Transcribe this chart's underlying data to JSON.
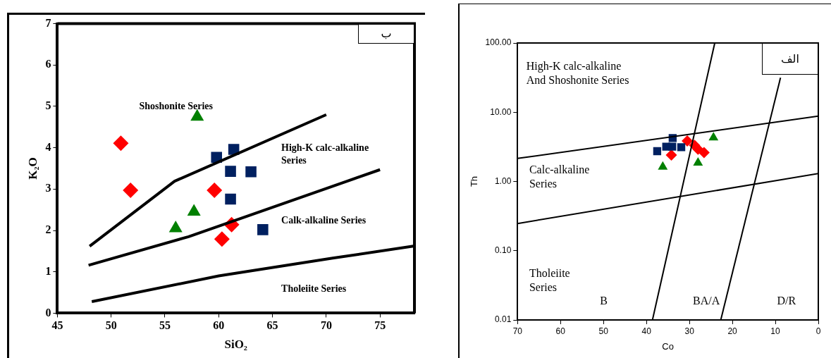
{
  "chart_data": [
    {
      "type": "scatter",
      "title": "ب",
      "xlabel": "SiO₂",
      "ylabel": "K₂O",
      "xlim": [
        45,
        78.2
      ],
      "ylim": [
        0,
        7
      ],
      "xticks": [
        45,
        50,
        55,
        60,
        65,
        70,
        75
      ],
      "yticks": [
        0,
        1,
        2,
        3,
        4,
        5,
        6,
        7
      ],
      "grid": false,
      "legend": false,
      "series": [
        {
          "type": "line",
          "color": "#000000",
          "marker": "none",
          "x": [
            48.0,
            55.9,
            70.0
          ],
          "values": [
            1.62,
            3.19,
            4.8
          ]
        },
        {
          "type": "line",
          "color": "#000000",
          "marker": "none",
          "x": [
            47.9,
            57.2,
            75.0
          ],
          "values": [
            1.16,
            1.85,
            3.47
          ]
        },
        {
          "type": "line",
          "color": "#000000",
          "marker": "none",
          "x": [
            48.2,
            60.0,
            70.6,
            78.1
          ],
          "values": [
            0.28,
            0.9,
            1.33,
            1.62
          ]
        },
        {
          "color": "#ff0000",
          "marker": "diamond",
          "x": [
            50.9,
            51.8,
            59.6,
            61.2,
            60.3
          ],
          "values": [
            4.11,
            2.97,
            2.97,
            2.14,
            1.79
          ]
        },
        {
          "color": "#002060",
          "marker": "square",
          "x": [
            59.8,
            61.4,
            61.1,
            63.0,
            61.1,
            64.1
          ],
          "values": [
            3.77,
            3.96,
            3.43,
            3.42,
            2.76,
            2.02
          ]
        },
        {
          "color": "#008000",
          "marker": "triangle",
          "x": [
            58.0,
            57.7,
            56.0
          ],
          "values": [
            4.75,
            2.45,
            2.05
          ]
        }
      ],
      "annotations": [
        "Shoshonite Series",
        "High-K calc-alkaline\nSeries",
        "Calk-alkaline Series",
        "Tholeiite Series"
      ]
    },
    {
      "type": "scatter",
      "title": "الف",
      "xlabel": "Co",
      "ylabel": "Th",
      "log": "y",
      "xlim": [
        70,
        0
      ],
      "ylim": [
        0.01,
        100
      ],
      "xticks": [
        70,
        60,
        50,
        40,
        30,
        20,
        10,
        0
      ],
      "yticks": [
        {
          "value": 0.01,
          "label": "0.01"
        },
        {
          "value": 0.1,
          "label": "0.10"
        },
        {
          "value": 1,
          "label": "1.00"
        },
        {
          "value": 10,
          "label": "10.00"
        },
        {
          "value": 100,
          "label": "100.00"
        }
      ],
      "grid": false,
      "legend": false,
      "series": [
        {
          "type": "line",
          "color": "#000000",
          "marker": "none",
          "x": [
            70,
            0
          ],
          "values": [
            2.15,
            8.77
          ]
        },
        {
          "type": "line",
          "color": "#000000",
          "marker": "none",
          "x": [
            70,
            0
          ],
          "values": [
            0.247,
            1.3
          ]
        },
        {
          "type": "line",
          "color": "#000000",
          "marker": "none",
          "x": [
            38.6,
            24.1
          ],
          "values": [
            0.01,
            100
          ]
        },
        {
          "type": "line",
          "color": "#000000",
          "marker": "none",
          "x": [
            22.7,
            8.8
          ],
          "values": [
            0.01,
            31.6
          ]
        },
        {
          "color": "#002060",
          "marker": "square",
          "x": [
            37.5,
            35.4,
            33.9,
            34.0,
            31.9
          ],
          "values": [
            2.74,
            3.18,
            4.23,
            3.18,
            3.12
          ]
        },
        {
          "color": "#ff0000",
          "marker": "diamond",
          "x": [
            34.2,
            30.5,
            28.8,
            28.0,
            26.6
          ],
          "values": [
            2.41,
            3.85,
            3.32,
            2.92,
            2.61
          ]
        },
        {
          "color": "#008000",
          "marker": "triangle",
          "x": [
            36.2,
            28.0,
            24.4
          ],
          "values": [
            1.63,
            1.86,
            4.3
          ]
        }
      ],
      "annotations": [
        "High-K calc-alkaline\nAnd Shoshonite Series",
        "Calc-alkaline\nSeries",
        "Tholeiite\nSeries",
        "B",
        "BA/A",
        "D/R"
      ]
    }
  ]
}
